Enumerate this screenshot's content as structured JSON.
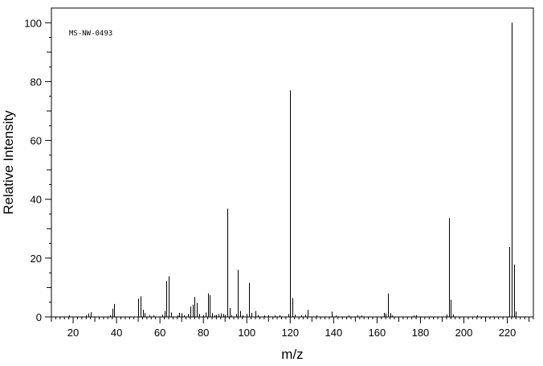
{
  "chart_data": {
    "type": "bar",
    "title": "",
    "annotation": "MS-NW-0493",
    "xlabel": "m/z",
    "ylabel": "Relative Intensity",
    "xlim": [
      10,
      232
    ],
    "ylim": [
      0,
      105
    ],
    "x_ticks": [
      20,
      40,
      60,
      80,
      100,
      120,
      140,
      160,
      180,
      200,
      220
    ],
    "y_ticks": [
      0,
      20,
      40,
      60,
      80,
      100
    ],
    "grid": false,
    "peaks": [
      {
        "x": 18,
        "y": 0.6
      },
      {
        "x": 26,
        "y": 0.5
      },
      {
        "x": 27,
        "y": 1.2
      },
      {
        "x": 28,
        "y": 1.6
      },
      {
        "x": 37,
        "y": 0.6
      },
      {
        "x": 38,
        "y": 2.8
      },
      {
        "x": 39,
        "y": 4.4
      },
      {
        "x": 50,
        "y": 6.2
      },
      {
        "x": 51,
        "y": 7.0
      },
      {
        "x": 52,
        "y": 2.4
      },
      {
        "x": 53,
        "y": 1.3
      },
      {
        "x": 55,
        "y": 0.6
      },
      {
        "x": 57,
        "y": 0.5
      },
      {
        "x": 61,
        "y": 0.8
      },
      {
        "x": 62,
        "y": 2.0
      },
      {
        "x": 63,
        "y": 12.2
      },
      {
        "x": 64,
        "y": 13.8
      },
      {
        "x": 65,
        "y": 1.5
      },
      {
        "x": 68,
        "y": 0.5
      },
      {
        "x": 69,
        "y": 1.4
      },
      {
        "x": 70,
        "y": 1.3
      },
      {
        "x": 71,
        "y": 0.6
      },
      {
        "x": 73,
        "y": 1.0
      },
      {
        "x": 74,
        "y": 3.6
      },
      {
        "x": 75,
        "y": 4.2
      },
      {
        "x": 76,
        "y": 6.8
      },
      {
        "x": 77,
        "y": 4.8
      },
      {
        "x": 78,
        "y": 1.0
      },
      {
        "x": 80,
        "y": 0.6
      },
      {
        "x": 81,
        "y": 1.5
      },
      {
        "x": 82,
        "y": 8.0
      },
      {
        "x": 83,
        "y": 7.4
      },
      {
        "x": 84,
        "y": 1.3
      },
      {
        "x": 85,
        "y": 0.6
      },
      {
        "x": 86,
        "y": 0.7
      },
      {
        "x": 87,
        "y": 1.0
      },
      {
        "x": 88,
        "y": 1.2
      },
      {
        "x": 89,
        "y": 1.0
      },
      {
        "x": 90,
        "y": 0.6
      },
      {
        "x": 91,
        "y": 36.8
      },
      {
        "x": 92,
        "y": 3.0
      },
      {
        "x": 93,
        "y": 0.6
      },
      {
        "x": 95,
        "y": 1.0
      },
      {
        "x": 96,
        "y": 16.0
      },
      {
        "x": 97,
        "y": 2.0
      },
      {
        "x": 98,
        "y": 0.6
      },
      {
        "x": 100,
        "y": 1.0
      },
      {
        "x": 101,
        "y": 11.6
      },
      {
        "x": 102,
        "y": 1.4
      },
      {
        "x": 104,
        "y": 2.0
      },
      {
        "x": 105,
        "y": 0.6
      },
      {
        "x": 108,
        "y": 0.5
      },
      {
        "x": 110,
        "y": 0.6
      },
      {
        "x": 113,
        "y": 0.5
      },
      {
        "x": 115,
        "y": 0.6
      },
      {
        "x": 119,
        "y": 1.0
      },
      {
        "x": 120,
        "y": 77.0
      },
      {
        "x": 121,
        "y": 6.4
      },
      {
        "x": 122,
        "y": 0.8
      },
      {
        "x": 125,
        "y": 0.6
      },
      {
        "x": 127,
        "y": 0.8
      },
      {
        "x": 128,
        "y": 2.4
      },
      {
        "x": 132,
        "y": 0.5
      },
      {
        "x": 139,
        "y": 1.8
      },
      {
        "x": 141,
        "y": 0.5
      },
      {
        "x": 147,
        "y": 0.5
      },
      {
        "x": 151,
        "y": 0.6
      },
      {
        "x": 153,
        "y": 0.5
      },
      {
        "x": 163,
        "y": 1.4
      },
      {
        "x": 164,
        "y": 1.2
      },
      {
        "x": 165,
        "y": 8.0
      },
      {
        "x": 166,
        "y": 1.3
      },
      {
        "x": 167,
        "y": 0.5
      },
      {
        "x": 177,
        "y": 0.5
      },
      {
        "x": 178,
        "y": 0.6
      },
      {
        "x": 192,
        "y": 0.8
      },
      {
        "x": 193,
        "y": 33.6
      },
      {
        "x": 194,
        "y": 5.8
      },
      {
        "x": 195,
        "y": 0.8
      },
      {
        "x": 206,
        "y": 0.5
      },
      {
        "x": 221,
        "y": 23.8
      },
      {
        "x": 222,
        "y": 100.0
      },
      {
        "x": 223,
        "y": 17.8
      },
      {
        "x": 224,
        "y": 1.8
      }
    ]
  }
}
